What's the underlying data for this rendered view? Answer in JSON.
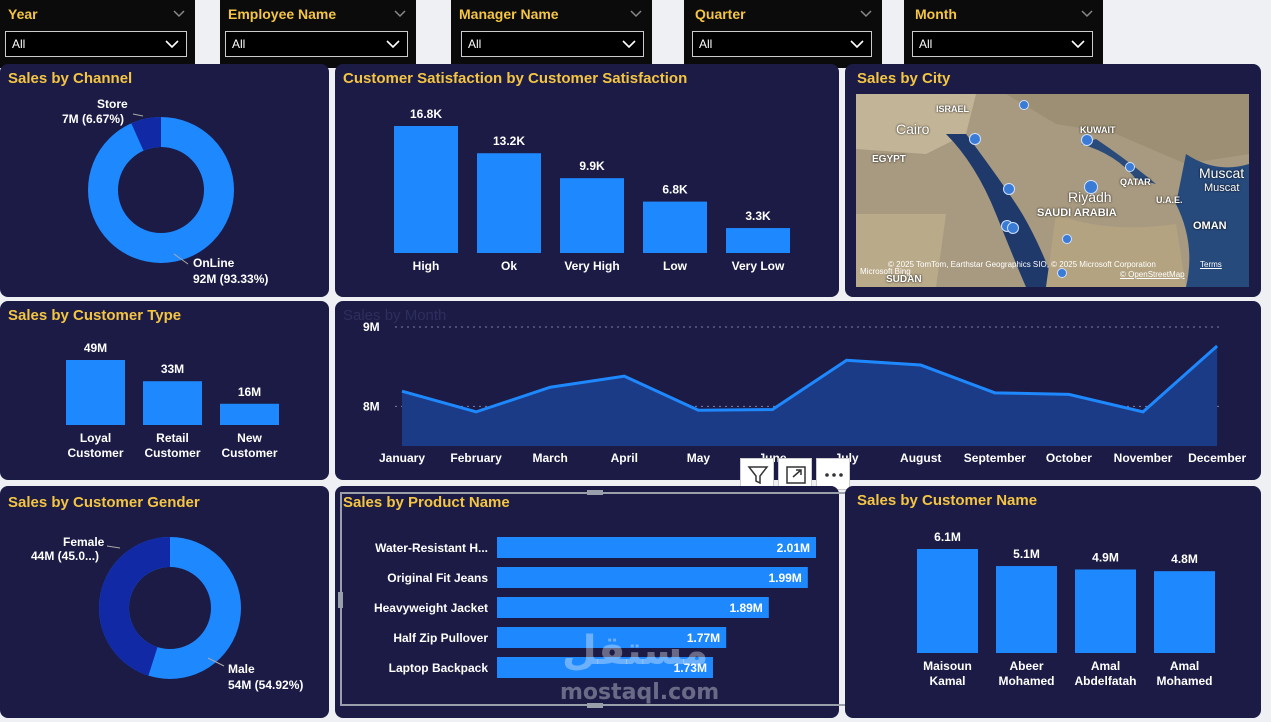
{
  "slicers": [
    {
      "label": "Year",
      "value": "All"
    },
    {
      "label": "Employee Name",
      "value": "All"
    },
    {
      "label": "Manager Name",
      "value": "All"
    },
    {
      "label": "Quarter",
      "value": "All"
    },
    {
      "label": "Month",
      "value": "All"
    }
  ],
  "colors": {
    "accent": "#1e88ff",
    "dark_accent": "#1229a6",
    "title": "#f4c542",
    "panel": "#1b1b45"
  },
  "sales_by_channel": {
    "title": "Sales by Channel",
    "chart_data": {
      "type": "pie",
      "slices": [
        {
          "name": "Store",
          "label": "7M (6.67%)",
          "value": 6.67
        },
        {
          "name": "OnLine",
          "label": "92M (93.33%)",
          "value": 93.33
        }
      ]
    }
  },
  "customer_satisfaction": {
    "title": "Customer Satisfaction by Customer Satisfaction",
    "chart_data": {
      "type": "bar",
      "categories": [
        "High",
        "Ok",
        "Very High",
        "Low",
        "Very Low"
      ],
      "values": [
        16.8,
        13.2,
        9.9,
        6.8,
        3.3
      ],
      "labels": [
        "16.8K",
        "13.2K",
        "9.9K",
        "6.8K",
        "3.3K"
      ]
    }
  },
  "sales_by_city": {
    "title": "Sales by City",
    "labels": {
      "israel": "ISRAEL",
      "cairo": "Cairo",
      "egypt": "EGYPT",
      "kuwait": "KUWAIT",
      "qatar": "QATAR",
      "riyadh": "Riyadh",
      "saudi": "SAUDI ARABIA",
      "uae": "U.A.E.",
      "muscat_big": "Muscat",
      "muscat_small": "Muscat",
      "oman": "OMAN",
      "sudan": "SUDAN"
    },
    "bing": "Microsoft Bing",
    "credits": "© 2025 TomTom, Earthstar Geographics SIO, © 2025 Microsoft Corporation",
    "terms": "Terms",
    "osm": "© OpenStreetMap"
  },
  "sales_by_customer_type": {
    "title": "Sales by Customer Type",
    "chart_data": {
      "type": "bar",
      "categories": [
        [
          "Loyal",
          "Customer"
        ],
        [
          "Retail",
          "Customer"
        ],
        [
          "New",
          "Customer"
        ]
      ],
      "values": [
        49,
        33,
        16
      ],
      "labels": [
        "49M",
        "33M",
        "16M"
      ]
    }
  },
  "sales_by_month": {
    "title": "Sales by Month",
    "chart_data": {
      "type": "area",
      "categories": [
        "January",
        "February",
        "March",
        "April",
        "May",
        "June",
        "July",
        "August",
        "September",
        "October",
        "November",
        "December"
      ],
      "values": [
        8.19,
        7.93,
        8.24,
        8.38,
        7.95,
        7.96,
        8.58,
        8.52,
        8.17,
        8.15,
        7.93,
        8.76
      ],
      "ylim": [
        7.5,
        9.1
      ],
      "yticks": [
        {
          "v": 9,
          "label": "9M"
        },
        {
          "v": 8,
          "label": "8M"
        }
      ]
    }
  },
  "sales_by_customer_gender": {
    "title": "Sales by Customer Gender",
    "chart_data": {
      "type": "pie",
      "slices": [
        {
          "name": "Female",
          "label": "44M (45.0...)",
          "value": 45.08
        },
        {
          "name": "Male",
          "label": "54M (54.92%)",
          "value": 54.92
        }
      ]
    }
  },
  "sales_by_product_name": {
    "title": "Sales by Product Name",
    "chart_data": {
      "type": "bar",
      "categories": [
        "Water-Resistant H...",
        "Original Fit Jeans",
        "Heavyweight Jacket",
        "Half Zip Pullover",
        "Laptop Backpack"
      ],
      "values": [
        2.01,
        1.99,
        1.89,
        1.77,
        1.73
      ],
      "labels": [
        "2.01M",
        "1.99M",
        "1.89M",
        "1.77M",
        "1.73M"
      ]
    }
  },
  "sales_by_customer_name": {
    "title": "Sales by Customer Name",
    "chart_data": {
      "type": "bar",
      "categories": [
        [
          "Maisoun",
          "Kamal"
        ],
        [
          "Abeer",
          "Mohamed"
        ],
        [
          "Amal",
          "Abdelfatah"
        ],
        [
          "Amal",
          "Mohamed"
        ]
      ],
      "values": [
        6.1,
        5.1,
        4.9,
        4.8
      ],
      "labels": [
        "6.1M",
        "5.1M",
        "4.9M",
        "4.8M"
      ]
    }
  },
  "watermark": {
    "arabic": "مستقل",
    "latin": "mostaql.com"
  }
}
